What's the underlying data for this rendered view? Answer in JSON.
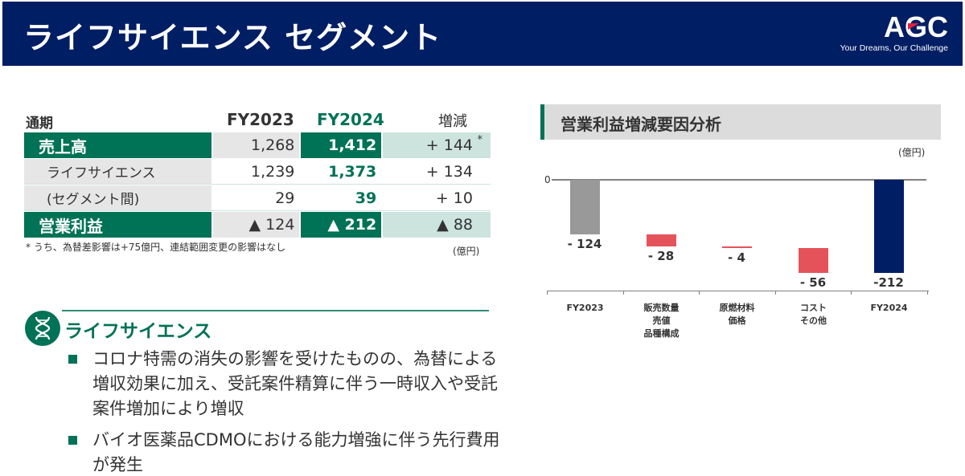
{
  "header": {
    "title": "ライフサイエンス セグメント",
    "logo_text": "AGC",
    "logo_tagline": "Your Dreams, Our Challenge",
    "background_color": "#001E64"
  },
  "table": {
    "period_label": "通期",
    "col_fy2023": "FY2023",
    "col_fy2024": "FY2024",
    "col_change": "増減",
    "rows": [
      {
        "label": "売上高",
        "fy2023": "1,268",
        "fy2024": "1,412",
        "change": "+ 144",
        "mark": "*"
      },
      {
        "label": "ライフサイエンス",
        "fy2023": "1,239",
        "fy2024": "1,373",
        "change": "+ 134"
      },
      {
        "label": "(セグメント間)",
        "fy2023": "29",
        "fy2024": "39",
        "change": "+ 10"
      },
      {
        "label": "営業利益",
        "fy2023": "▲ 124",
        "fy2024": "▲ 212",
        "change": "▲ 88"
      }
    ],
    "footnote": "* うち、為替差影響は+75億円、連結範囲変更の影響はなし",
    "unit": "(億円)",
    "accent_color": "#007256"
  },
  "section": {
    "icon": "dna-icon",
    "title": "ライフサイエンス",
    "bullets": [
      "コロナ特需の消失の影響を受けたものの、為替による増収効果に加え、受託案件精算に伴う一時収入や受託案件増加により増収",
      "バイオ医薬品CDMOにおける能力増強に伴う先行費用が発生"
    ]
  },
  "chart_panel": {
    "title": "営業利益増減要因分析",
    "unit": "(億円)",
    "zero_label": "0"
  },
  "chart_data": {
    "type": "bar",
    "subtype": "waterfall",
    "title": "営業利益増減要因分析",
    "ylabel": "(億円)",
    "categories": [
      "FY2023",
      "販売数量\n売値\n品種構成",
      "原燃材料\n価格",
      "コスト\nその他",
      "FY2024"
    ],
    "values": [
      -124,
      -28,
      -4,
      -56,
      -212
    ],
    "value_labels": [
      "- 124",
      "- 28",
      "- 4",
      "- 56",
      "-212"
    ],
    "colors": [
      "#999999",
      "#E5535A",
      "#E5535A",
      "#E5535A",
      "#001E64"
    ],
    "ylim": [
      -230,
      0
    ],
    "grid": false,
    "legend": "none"
  }
}
